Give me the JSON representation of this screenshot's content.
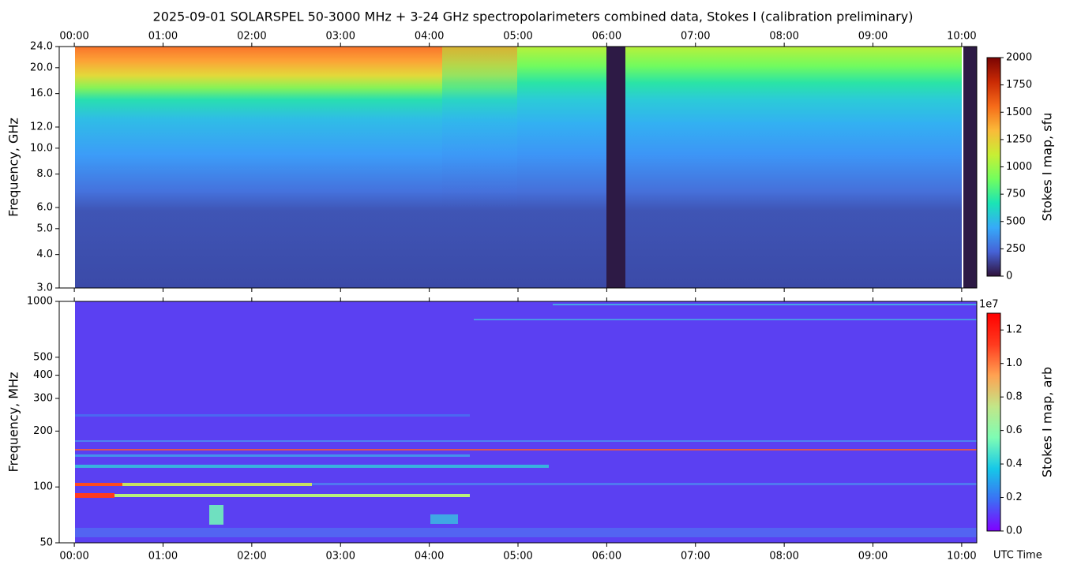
{
  "title": "2025-09-01  SOLARSPEL  50-3000 MHz  +  3-24 GHz  spectropolarimeters combined data,  Stokes I  (calibration preliminary)",
  "x_label": "UTC Time",
  "chart_data": [
    {
      "type": "heatmap",
      "ylabel": "Frequency, GHz",
      "colorbar_label": "Stokes I map, sfu",
      "colormap": "turbo",
      "xlim": [
        -0.17,
        10.17
      ],
      "xticks_position": "top",
      "xticks": [
        {
          "value": 0,
          "label": "00:00"
        },
        {
          "value": 1,
          "label": "01:00"
        },
        {
          "value": 2,
          "label": "02:00"
        },
        {
          "value": 3,
          "label": "03:00"
        },
        {
          "value": 4,
          "label": "04:00"
        },
        {
          "value": 5,
          "label": "05:00"
        },
        {
          "value": 6,
          "label": "06:00"
        },
        {
          "value": 7,
          "label": "07:00"
        },
        {
          "value": 8,
          "label": "08:00"
        },
        {
          "value": 9,
          "label": "09:00"
        },
        {
          "value": 10,
          "label": "10:00"
        }
      ],
      "ylim": [
        3,
        24
      ],
      "log_y": true,
      "yticks": [
        {
          "value": 3,
          "label": "3.0"
        },
        {
          "value": 4,
          "label": "4.0"
        },
        {
          "value": 5,
          "label": "5.0"
        },
        {
          "value": 6,
          "label": "6.0"
        },
        {
          "value": 8,
          "label": "8.0"
        },
        {
          "value": 10,
          "label": "10.0"
        },
        {
          "value": 12,
          "label": "12.0"
        },
        {
          "value": 16,
          "label": "16.0"
        },
        {
          "value": 20,
          "label": "20.0"
        },
        {
          "value": 24,
          "label": "24.0"
        }
      ],
      "clim": [
        0,
        2000
      ],
      "cticks": [
        0,
        250,
        500,
        750,
        1000,
        1250,
        1500,
        1750,
        2000
      ]
    },
    {
      "type": "heatmap",
      "ylabel": "Frequency, MHz",
      "colorbar_label": "Stokes I map, arb",
      "colormap": "rainbow",
      "xlim": [
        -0.17,
        10.17
      ],
      "xticks_position": "bottom",
      "xticks": [
        {
          "value": 0,
          "label": "00:00"
        },
        {
          "value": 1,
          "label": "01:00"
        },
        {
          "value": 2,
          "label": "02:00"
        },
        {
          "value": 3,
          "label": "03:00"
        },
        {
          "value": 4,
          "label": "04:00"
        },
        {
          "value": 5,
          "label": "05:00"
        },
        {
          "value": 6,
          "label": "06:00"
        },
        {
          "value": 7,
          "label": "07:00"
        },
        {
          "value": 8,
          "label": "08:00"
        },
        {
          "value": 9,
          "label": "09:00"
        },
        {
          "value": 10,
          "label": "10:00"
        }
      ],
      "ylim": [
        50,
        1000
      ],
      "log_y": true,
      "yticks": [
        50,
        100,
        200,
        300,
        400,
        500,
        1000
      ],
      "clim": [
        0,
        1.3
      ],
      "colorbar_offset": "1e7",
      "cticks": [
        {
          "value": 0,
          "label": "0.0"
        },
        {
          "value": 0.2,
          "label": "0.2"
        },
        {
          "value": 0.4,
          "label": "0.4"
        },
        {
          "value": 0.6,
          "label": "0.6"
        },
        {
          "value": 0.8,
          "label": "0.8"
        },
        {
          "value": 1.0,
          "label": "1.0"
        },
        {
          "value": 1.2,
          "label": "1.2"
        }
      ]
    }
  ]
}
